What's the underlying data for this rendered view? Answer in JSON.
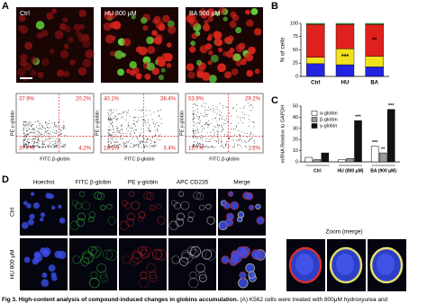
{
  "figure": {
    "panel_labels": [
      "A",
      "B",
      "C",
      "D"
    ],
    "panel_a": {
      "images": [
        "Ctrl",
        "HU 800 μM",
        "BA 900 μM"
      ],
      "flow": [
        {
          "quadrants": [
            "37.9%",
            "20.2%",
            "37.7%",
            "4.2%"
          ]
        },
        {
          "quadrants": [
            "40.1%",
            "38.4%",
            "18.1%",
            "3.4%"
          ]
        },
        {
          "quadrants": [
            "53.9%",
            "29.2%",
            "15.7%",
            "1.2%"
          ]
        }
      ],
      "y_label": "PE γ-globin",
      "x_label": "FITC β-globin"
    },
    "panel_b": {
      "y_label": "% of cells",
      "categories": [
        "Ctrl",
        "HU",
        "BA"
      ],
      "ylim": [
        0,
        100
      ],
      "yticks": [
        0,
        25,
        50,
        75,
        100
      ],
      "series": [
        {
          "color": "#2323e0",
          "values": [
            24,
            22,
            18
          ],
          "labels": [
            null,
            null,
            null
          ]
        },
        {
          "color": "#f2e21c",
          "values": [
            12,
            30,
            20
          ],
          "labels": [
            null,
            "***",
            null
          ]
        },
        {
          "color": "#e0201c",
          "values": [
            62,
            46,
            60
          ],
          "labels": [
            null,
            null,
            "**"
          ]
        },
        {
          "color": "#2fb34a",
          "values": [
            2,
            2,
            2
          ],
          "labels": [
            null,
            null,
            null
          ]
        }
      ]
    },
    "panel_c": {
      "y_label": "mRNA Relative to GAPDH",
      "categories": [
        "Ctrl",
        "HU (800 μM)",
        "BA (900 μM)"
      ],
      "ylim": [
        0,
        50
      ],
      "yticks": [
        0,
        10,
        20,
        30,
        40,
        50
      ],
      "series": [
        {
          "name": "α-globin",
          "color": "#ffffff",
          "values": [
            4,
            2,
            14
          ],
          "labels": [
            null,
            null,
            "***"
          ]
        },
        {
          "name": "β-globin",
          "color": "#9a9a9a",
          "values": [
            2,
            3,
            8
          ],
          "labels": [
            null,
            null,
            "**"
          ]
        },
        {
          "name": "γ-globin",
          "color": "#111111",
          "values": [
            8,
            37,
            47
          ],
          "labels": [
            null,
            "***",
            "***"
          ]
        }
      ]
    },
    "panel_d": {
      "column_headers": [
        "Hoechst",
        "FITC β-globin",
        "PE γ-globin",
        "APC CD235",
        "Merge"
      ],
      "row_labels": [
        "Ctrl",
        "HU 800 μM"
      ],
      "zoom_title": "Zoom (merge)"
    },
    "caption_title": "Fig 3. High-content analysis of compound-induced changes in globins accumulation.",
    "caption_text": "(A) K562 cells were treated with 800μM hydroxyurea and"
  }
}
